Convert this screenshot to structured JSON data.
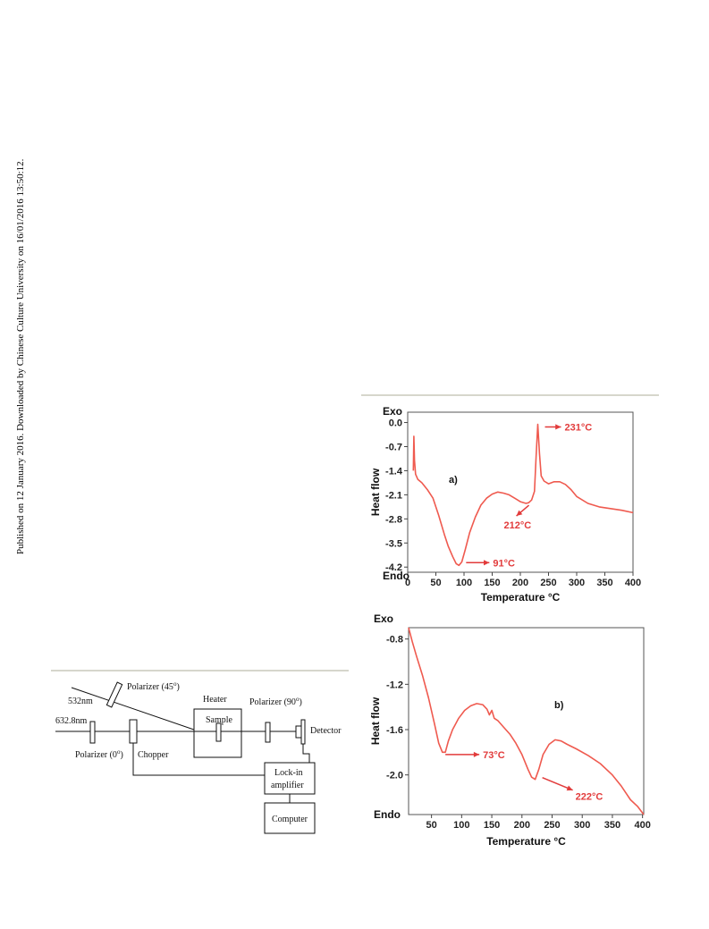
{
  "side_note": "Published on 12 January 2016. Downloaded by Chinese Culture University on 16/01/2016 13:50:12.",
  "schematic": {
    "labels": {
      "laser_532": "532nm",
      "laser_632": "632.8nm",
      "polarizer_45": "Polarizer (45",
      "polarizer_0": "Polarizer (0",
      "polarizer_90": "Polarizer (90",
      "degree_sup": "o",
      "close_paren": ")",
      "heater": "Heater",
      "sample": "Sample",
      "chopper": "Chopper",
      "detector": "Detector",
      "lockin_1": "Lock-in",
      "lockin_2": "amplifier",
      "computer": "Computer"
    }
  },
  "chart_data": [
    {
      "type": "line",
      "panel_label": "a)",
      "top_label": "Exo",
      "bottom_label": "Endo",
      "xlabel": "Temperature °C",
      "ylabel": "Heat flow",
      "xlim": [
        0,
        400
      ],
      "ylim": [
        -4.35,
        0.3
      ],
      "x_ticks": [
        0,
        50,
        100,
        150,
        200,
        250,
        300,
        350,
        400
      ],
      "y_ticks": [
        0.0,
        -0.7,
        -1.4,
        -2.1,
        -2.8,
        -3.5,
        -4.2
      ],
      "y_tick_labels": [
        "0.0",
        "-0.7",
        "-1.4",
        "-2.1",
        "-2.8",
        "-3.5",
        "-4.2"
      ],
      "line_color": "#ef5a4f",
      "series": [
        {
          "x": [
            10,
            11,
            12,
            14,
            18,
            25,
            35,
            45,
            55,
            65,
            72,
            80,
            86,
            91,
            96,
            102,
            110,
            120,
            130,
            140,
            150,
            160,
            170,
            180,
            190,
            200,
            210,
            215,
            220,
            225,
            228,
            231,
            234,
            237,
            242,
            250,
            260,
            270,
            280,
            290,
            300,
            320,
            340,
            360,
            380,
            400
          ],
          "y": [
            -1.4,
            -0.4,
            -1.1,
            -1.5,
            -1.65,
            -1.75,
            -1.95,
            -2.2,
            -2.7,
            -3.25,
            -3.6,
            -3.9,
            -4.1,
            -4.15,
            -4.05,
            -3.7,
            -3.2,
            -2.75,
            -2.4,
            -2.2,
            -2.08,
            -2.02,
            -2.05,
            -2.1,
            -2.2,
            -2.3,
            -2.35,
            -2.33,
            -2.25,
            -2.0,
            -1.0,
            -0.05,
            -0.9,
            -1.55,
            -1.7,
            -1.78,
            -1.72,
            -1.72,
            -1.8,
            -1.95,
            -2.15,
            -2.35,
            -2.45,
            -2.5,
            -2.55,
            -2.62
          ]
        }
      ],
      "annotations": [
        {
          "text": "231°C",
          "x": 231,
          "y": -0.05
        },
        {
          "text": "212°C",
          "x": 212,
          "y": -2.35
        },
        {
          "text": "91°C",
          "x": 91,
          "y": -4.15
        }
      ]
    },
    {
      "type": "line",
      "panel_label": "b)",
      "top_label": "Exo",
      "bottom_label": "Endo",
      "xlabel": "Temperature °C",
      "ylabel": "Heat flow",
      "xlim": [
        12,
        402
      ],
      "ylim": [
        -2.35,
        -0.7
      ],
      "x_ticks": [
        50,
        100,
        150,
        200,
        250,
        300,
        350,
        400
      ],
      "y_ticks": [
        -0.8,
        -1.2,
        -1.6,
        -2.0
      ],
      "y_tick_labels": [
        "-0.8",
        "-1.2",
        "-1.6",
        "-2.0"
      ],
      "line_color": "#ef5a4f",
      "series": [
        {
          "x": [
            12,
            18,
            25,
            35,
            45,
            55,
            62,
            68,
            73,
            78,
            85,
            95,
            105,
            115,
            125,
            135,
            142,
            146,
            150,
            154,
            160,
            170,
            180,
            190,
            200,
            210,
            216,
            222,
            228,
            235,
            245,
            255,
            265,
            275,
            290,
            310,
            330,
            350,
            365,
            380,
            392,
            402
          ],
          "y": [
            -0.7,
            -0.82,
            -0.95,
            -1.12,
            -1.32,
            -1.55,
            -1.72,
            -1.8,
            -1.8,
            -1.7,
            -1.6,
            -1.5,
            -1.43,
            -1.39,
            -1.37,
            -1.38,
            -1.42,
            -1.47,
            -1.43,
            -1.5,
            -1.52,
            -1.58,
            -1.64,
            -1.72,
            -1.82,
            -1.95,
            -2.02,
            -2.04,
            -1.95,
            -1.82,
            -1.73,
            -1.69,
            -1.7,
            -1.73,
            -1.77,
            -1.83,
            -1.9,
            -2.0,
            -2.1,
            -2.22,
            -2.28,
            -2.35
          ]
        }
      ],
      "annotations": [
        {
          "text": "73°C",
          "x": 73,
          "y": -1.82
        },
        {
          "text": "222°C",
          "x": 222,
          "y": -2.04
        }
      ]
    }
  ]
}
